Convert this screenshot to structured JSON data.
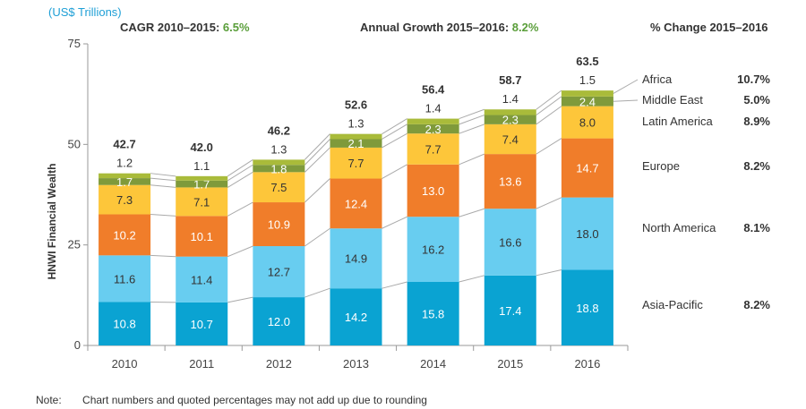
{
  "unit_label": "(US$ Trillions)",
  "header": {
    "cagr_label": "CAGR 2010–2015: ",
    "cagr_value": "6.5%",
    "annual_label": "Annual Growth 2015–2016: ",
    "annual_value": "8.2%",
    "change_label": "% Change 2015–2016"
  },
  "note": {
    "label": "Note:",
    "text": "Chart numbers and quoted percentages may not add up due to rounding"
  },
  "chart_data": {
    "type": "bar",
    "stacked": true,
    "title": "",
    "xlabel": "",
    "ylabel": "HNWI Financial Wealth",
    "ylim": [
      0,
      75
    ],
    "yticks": [
      0,
      25,
      50,
      75
    ],
    "grid": false,
    "legend_placement": "right",
    "categories": [
      "2010",
      "2011",
      "2012",
      "2013",
      "2014",
      "2015",
      "2016"
    ],
    "totals": [
      "42.7",
      "42.0",
      "46.2",
      "52.6",
      "56.4",
      "58.7",
      "63.5"
    ],
    "series": [
      {
        "name": "Asia-Pacific",
        "change": "8.2%",
        "color": "#0aa3d2",
        "text_color": "#ffffff",
        "values": [
          10.8,
          10.7,
          12.0,
          14.2,
          15.8,
          17.4,
          18.8
        ]
      },
      {
        "name": "North America",
        "change": "8.1%",
        "color": "#68cdf0",
        "text_color": "#333333",
        "values": [
          11.6,
          11.4,
          12.7,
          14.9,
          16.2,
          16.6,
          18.0
        ]
      },
      {
        "name": "Europe",
        "change": "8.2%",
        "color": "#f07d2a",
        "text_color": "#ffffff",
        "values": [
          10.2,
          10.1,
          10.9,
          12.4,
          13.0,
          13.6,
          14.7
        ]
      },
      {
        "name": "Latin America",
        "change": "8.9%",
        "color": "#fdc63a",
        "text_color": "#333333",
        "values": [
          7.3,
          7.1,
          7.5,
          7.7,
          7.7,
          7.4,
          8.0
        ]
      },
      {
        "name": "Middle East",
        "change": "5.0%",
        "color": "#7f9a3b",
        "text_color": "#ffffff",
        "values": [
          1.7,
          1.7,
          1.8,
          2.1,
          2.3,
          2.3,
          2.4
        ]
      },
      {
        "name": "Africa",
        "change": "10.7%",
        "color": "#a9bb3a",
        "text_color": "#333333",
        "values": [
          1.2,
          1.1,
          1.3,
          1.3,
          1.4,
          1.4,
          1.5
        ]
      }
    ]
  }
}
